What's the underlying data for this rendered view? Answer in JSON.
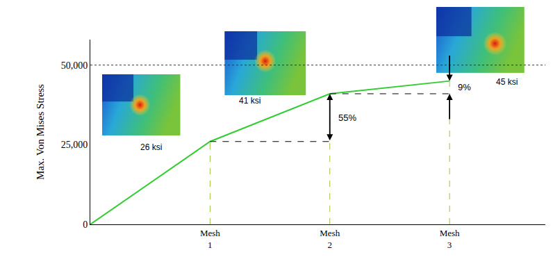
{
  "chart_data": {
    "type": "line",
    "y_label": "Max. Von Mises Stress",
    "categories": [
      null,
      "Mesh\n1",
      "Mesh\n2",
      "Mesh\n3"
    ],
    "values": [
      0,
      26000,
      41000,
      45000
    ],
    "data_labels": true,
    "value_labels": [
      null,
      "26 ksi",
      "41 ksi",
      "45 ksi"
    ],
    "color": "#33cc33",
    "ylim": [
      0,
      58000
    ],
    "yticks": [
      0,
      {
        "value": 25000,
        "label": "25,000"
      },
      {
        "value": 50000,
        "label": "50,000"
      }
    ],
    "grid": false,
    "annotations": [
      {
        "text": "55%",
        "from": "Mesh\n1",
        "to": "Mesh\n2"
      },
      {
        "text": "9%",
        "from": "Mesh\n2",
        "to": "Mesh\n3"
      }
    ]
  }
}
